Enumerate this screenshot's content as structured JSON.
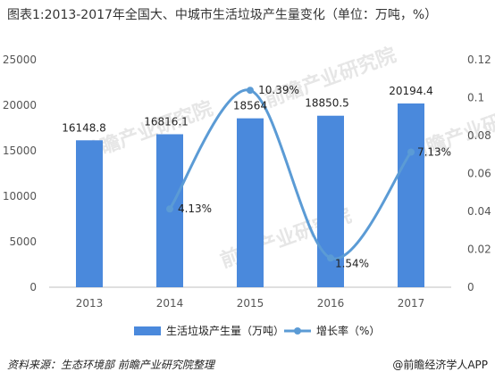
{
  "title": "图表1:2013-2017年全国大、中城市生活垃圾产生量变化（单位：万吨，%）",
  "footer": {
    "source": "资料来源：生态环境部 前瞻产业研究院整理",
    "brand": "@前瞻经济学人APP"
  },
  "watermark_text": "前瞻产业研究院",
  "colors": {
    "bar": "#4a89dc",
    "line": "#5b9bd5",
    "axis": "#bfbfbf"
  },
  "chart_data": {
    "type": "bar",
    "categories": [
      "2013",
      "2014",
      "2015",
      "2016",
      "2017"
    ],
    "series": [
      {
        "name": "生活垃圾产生量（万吨）",
        "type": "bar",
        "axis": "left",
        "values": [
          16148.8,
          16816.1,
          18564,
          18850.5,
          20194.4
        ],
        "labels": [
          "16148.8",
          "16816.1",
          "18564",
          "18850.5",
          "20194.4"
        ]
      },
      {
        "name": "增长率（%）",
        "type": "line",
        "axis": "right",
        "values": [
          null,
          0.0413,
          0.1039,
          0.0154,
          0.0713
        ],
        "labels": [
          "",
          "4.13%",
          "10.39%",
          "1.54%",
          "7.13%"
        ]
      }
    ],
    "y_left": {
      "min": 0,
      "max": 25000,
      "ticks": [
        "0",
        "5000",
        "10000",
        "15000",
        "20000",
        "25000"
      ]
    },
    "y_right": {
      "min": 0,
      "max": 0.12,
      "ticks": [
        "0",
        "0.02",
        "0.04",
        "0.06",
        "0.08",
        "0.1",
        "0.12"
      ]
    },
    "legend_position": "bottom"
  }
}
